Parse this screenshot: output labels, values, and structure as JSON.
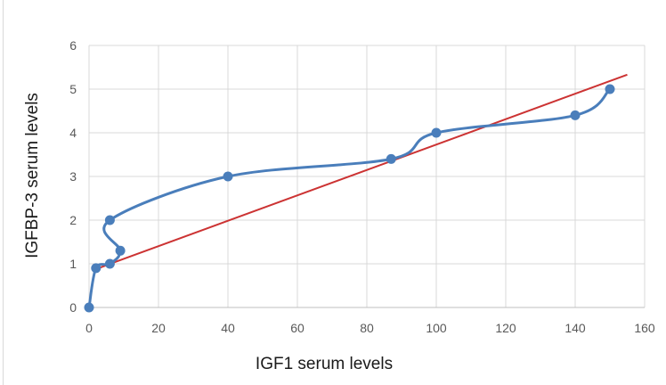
{
  "chart_data": {
    "type": "scatter",
    "xlabel": "IGF1 serum levels",
    "ylabel": "IGFBP-3 serum levels",
    "xlim": [
      0,
      160
    ],
    "ylim": [
      0,
      6
    ],
    "x_ticks": [
      "0",
      "20",
      "40",
      "60",
      "80",
      "100",
      "120",
      "140",
      "160"
    ],
    "y_ticks": [
      "0",
      "1",
      "2",
      "3",
      "4",
      "5",
      "6"
    ],
    "grid": true,
    "legend": "none",
    "series": [
      {
        "style": "smoothed line with markers",
        "color": "#4a7ebb",
        "points": [
          {
            "x": 0,
            "y": 0
          },
          {
            "x": 2,
            "y": 0.9
          },
          {
            "x": 6,
            "y": 1.0
          },
          {
            "x": 9,
            "y": 1.3
          },
          {
            "x": 6,
            "y": 2.0
          },
          {
            "x": 40,
            "y": 3.0
          },
          {
            "x": 87,
            "y": 3.4
          },
          {
            "x": 100,
            "y": 4.0
          },
          {
            "x": 140,
            "y": 4.4
          },
          {
            "x": 150,
            "y": 5.0
          }
        ]
      }
    ],
    "trendline": {
      "style": "linear",
      "color": "#cc3333",
      "x": [
        2,
        155
      ],
      "y": [
        0.88,
        5.33
      ]
    }
  }
}
